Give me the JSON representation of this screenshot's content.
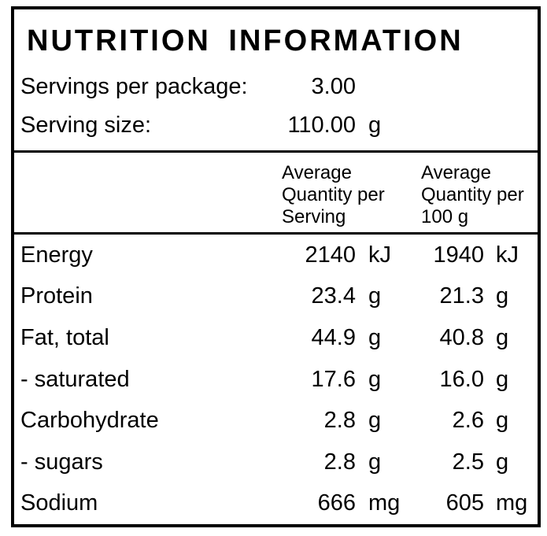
{
  "label": {
    "title": "NUTRITION INFORMATION",
    "servings_per_package": {
      "label": "Servings per package:",
      "value": "3.00",
      "unit": ""
    },
    "serving_size": {
      "label": "Serving size:",
      "value": "110.00",
      "unit": "g"
    },
    "column_headers": {
      "per_serving": "Average\nQuantity per\nServing",
      "per_100g": "Average\nQuantity per\n100 g"
    },
    "rows": [
      {
        "name": "Energy",
        "per_serving": "2140",
        "per_serving_unit": "kJ",
        "per_100g": "1940",
        "per_100g_unit": "kJ"
      },
      {
        "name": "Protein",
        "per_serving": "23.4",
        "per_serving_unit": "g",
        "per_100g": "21.3",
        "per_100g_unit": "g"
      },
      {
        "name": "Fat, total",
        "per_serving": "44.9",
        "per_serving_unit": "g",
        "per_100g": "40.8",
        "per_100g_unit": "g"
      },
      {
        "name": "- saturated",
        "per_serving": "17.6",
        "per_serving_unit": "g",
        "per_100g": "16.0",
        "per_100g_unit": "g"
      },
      {
        "name": "Carbohydrate",
        "per_serving": "2.8",
        "per_serving_unit": "g",
        "per_100g": "2.6",
        "per_100g_unit": "g"
      },
      {
        "name": "- sugars",
        "per_serving": "2.8",
        "per_serving_unit": "g",
        "per_100g": "2.5",
        "per_100g_unit": "g"
      },
      {
        "name": "Sodium",
        "per_serving": "666",
        "per_serving_unit": "mg",
        "per_100g": "605",
        "per_100g_unit": "mg"
      }
    ],
    "colors": {
      "border": "#000000",
      "text": "#000000",
      "background": "#ffffff"
    }
  }
}
